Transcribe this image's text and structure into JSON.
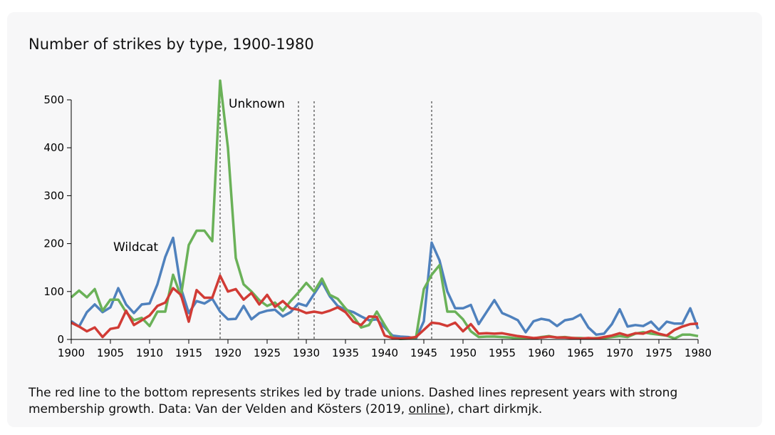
{
  "title": "Number of strikes by type, 1900-1980",
  "caption": {
    "before_link": "The red line to the bottom represents strikes led by trade unions. Dashed lines represent years with strong membership growth. Data: Van der Velden and Kösters (2019, ",
    "link_text": "online",
    "after_link": "), chart dirkmjk."
  },
  "colors": {
    "union": "#d13b35",
    "wildcat": "#4f81bd",
    "unknown": "#6ab158",
    "dash": "#555555"
  },
  "chart_data": {
    "type": "line",
    "title": "Number of strikes by type, 1900-1980",
    "x": [
      1900,
      1901,
      1902,
      1903,
      1904,
      1905,
      1906,
      1907,
      1908,
      1909,
      1910,
      1911,
      1912,
      1913,
      1914,
      1915,
      1916,
      1917,
      1918,
      1919,
      1920,
      1921,
      1922,
      1923,
      1924,
      1925,
      1926,
      1927,
      1928,
      1929,
      1930,
      1931,
      1932,
      1933,
      1934,
      1935,
      1936,
      1937,
      1938,
      1939,
      1940,
      1941,
      1942,
      1943,
      1944,
      1945,
      1946,
      1947,
      1948,
      1949,
      1950,
      1951,
      1952,
      1953,
      1954,
      1955,
      1956,
      1957,
      1958,
      1959,
      1960,
      1961,
      1962,
      1963,
      1964,
      1965,
      1966,
      1967,
      1968,
      1969,
      1970,
      1971,
      1972,
      1973,
      1974,
      1975,
      1976,
      1977,
      1978,
      1979,
      1980
    ],
    "series": [
      {
        "name": "Wildcat",
        "key": "wildcat",
        "values": [
          38,
          27,
          57,
          73,
          57,
          67,
          107,
          73,
          55,
          73,
          75,
          115,
          172,
          212,
          107,
          55,
          80,
          75,
          85,
          58,
          42,
          43,
          70,
          42,
          55,
          60,
          62,
          48,
          57,
          75,
          70,
          95,
          120,
          90,
          70,
          62,
          57,
          48,
          40,
          42,
          25,
          8,
          6,
          5,
          2,
          38,
          202,
          165,
          100,
          65,
          65,
          72,
          32,
          57,
          82,
          55,
          48,
          40,
          15,
          38,
          43,
          40,
          28,
          40,
          43,
          52,
          25,
          10,
          12,
          32,
          63,
          27,
          30,
          28,
          37,
          20,
          37,
          33,
          33,
          65,
          22
        ]
      },
      {
        "name": "Unknown",
        "key": "unknown",
        "values": [
          88,
          102,
          88,
          105,
          60,
          83,
          83,
          57,
          40,
          45,
          28,
          58,
          58,
          135,
          90,
          197,
          227,
          227,
          205,
          540,
          400,
          170,
          115,
          100,
          82,
          70,
          77,
          60,
          80,
          98,
          118,
          100,
          127,
          93,
          85,
          65,
          48,
          25,
          30,
          58,
          30,
          4,
          1,
          2,
          4,
          105,
          135,
          155,
          58,
          58,
          42,
          17,
          5,
          6,
          6,
          5,
          4,
          2,
          2,
          2,
          5,
          7,
          4,
          5,
          3,
          3,
          2,
          3,
          3,
          5,
          7,
          5,
          12,
          15,
          12,
          10,
          8,
          2,
          10,
          10,
          7
        ]
      },
      {
        "name": "",
        "key": "union",
        "values": [
          35,
          27,
          17,
          25,
          5,
          22,
          25,
          60,
          30,
          40,
          50,
          70,
          77,
          107,
          93,
          37,
          103,
          87,
          87,
          133,
          100,
          105,
          83,
          97,
          73,
          93,
          68,
          80,
          65,
          62,
          55,
          58,
          55,
          60,
          67,
          57,
          37,
          30,
          48,
          47,
          8,
          3,
          2,
          3,
          5,
          20,
          35,
          33,
          28,
          35,
          17,
          32,
          12,
          13,
          12,
          13,
          10,
          7,
          5,
          3,
          4,
          6,
          4,
          4,
          3,
          2,
          3,
          2,
          5,
          8,
          13,
          8,
          13,
          12,
          18,
          12,
          8,
          20,
          27,
          32,
          33
        ]
      }
    ],
    "dashed_years": [
      1919,
      1929,
      1931,
      1946
    ],
    "labels": [
      "Unknown",
      "Wildcat"
    ],
    "xlim": [
      1900,
      1980
    ],
    "ylim": [
      0,
      500
    ],
    "xticks": [
      "1900",
      "1905",
      "1910",
      "1915",
      "1920",
      "1925",
      "1930",
      "1935",
      "1940",
      "1945",
      "1950",
      "1955",
      "1960",
      "1965",
      "1970",
      "1975",
      "1980"
    ],
    "yticks": [
      "0",
      "100",
      "200",
      "300",
      "400",
      "500"
    ],
    "xlabel": "",
    "ylabel": "",
    "grid": false
  }
}
